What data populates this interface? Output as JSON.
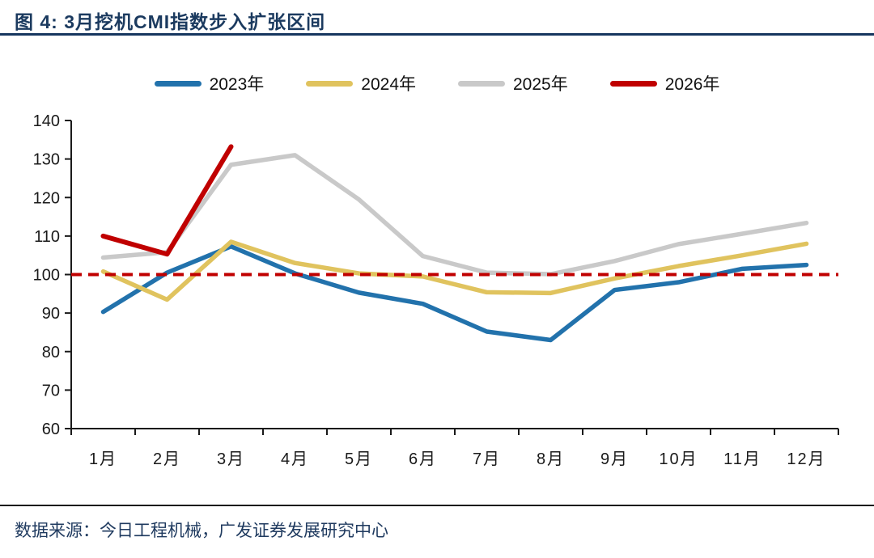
{
  "page": {
    "title": "图 4: 3月挖机CMI指数步入扩张区间",
    "source": "数据来源：今日工程机械，广发证券发展研究中心"
  },
  "colors": {
    "title_text": "#1b3a5f",
    "axis": "#1a1a1a",
    "reference_line": "#c00000"
  },
  "chart_data": {
    "type": "line",
    "title": "图 4: 3月挖机CMI指数步入扩张区间",
    "categories": [
      "1月",
      "2月",
      "3月",
      "4月",
      "5月",
      "6月",
      "7月",
      "8月",
      "9月",
      "10月",
      "11月",
      "12月"
    ],
    "xlabel": "",
    "ylabel": "",
    "ylim": [
      60,
      140
    ],
    "yticks": [
      60,
      70,
      80,
      90,
      100,
      110,
      120,
      130,
      140
    ],
    "grid": false,
    "legend_position": "top",
    "reference_line": {
      "value": 100,
      "style": "dashed",
      "color": "#c00000"
    },
    "series": [
      {
        "name": "2023年",
        "color": "#2272ac",
        "values": [
          90.3,
          100.5,
          107.3,
          100.3,
          95.3,
          92.4,
          85.2,
          83.0,
          96.0,
          98.0,
          101.5,
          102.5
        ]
      },
      {
        "name": "2024年",
        "color": "#e0c35e",
        "values": [
          100.8,
          93.5,
          108.5,
          103.0,
          100.3,
          99.5,
          95.4,
          95.2,
          99.0,
          102.2,
          105.0,
          108.0
        ]
      },
      {
        "name": "2025年",
        "color": "#c9c9c9",
        "values": [
          104.4,
          105.8,
          128.5,
          131.0,
          119.5,
          104.8,
          100.5,
          100.1,
          103.5,
          107.9,
          110.6,
          113.4
        ]
      },
      {
        "name": "2026年",
        "color": "#c00000",
        "values": [
          110.0,
          105.3,
          133.2,
          null,
          null,
          null,
          null,
          null,
          null,
          null,
          null,
          null
        ]
      }
    ]
  }
}
